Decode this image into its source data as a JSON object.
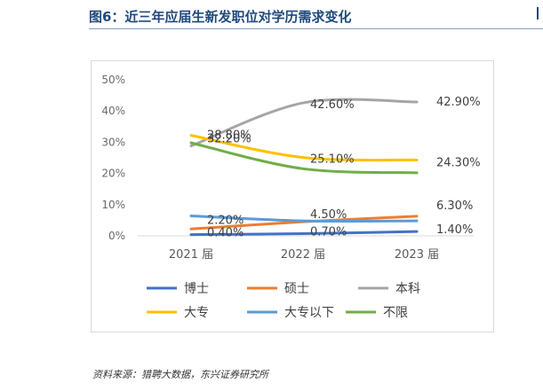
{
  "title": "图6：近三年应届生新发职位对学历需求变化",
  "source": "资料来源：猎聘大数据，东兴证券研究所",
  "chart_data": {
    "type": "line",
    "categories": [
      "2021 届",
      "2022 届",
      "2023 届"
    ],
    "y_ticks": [
      "0%",
      "10%",
      "20%",
      "30%",
      "40%",
      "50%"
    ],
    "ylim": [
      0,
      50
    ],
    "grid": false,
    "legend_position": "bottom",
    "series": [
      {
        "name": "博士",
        "color": "#4472c4",
        "values": [
          0.4,
          0.7,
          1.4
        ],
        "labels": [
          "0.40%",
          "0.70%",
          "1.40%"
        ]
      },
      {
        "name": "硕士",
        "color": "#ed7d31",
        "values": [
          2.2,
          4.5,
          6.3
        ],
        "labels": [
          "2.20%",
          "4.50%",
          "6.30%"
        ]
      },
      {
        "name": "本科",
        "color": "#a5a5a5",
        "values": [
          28.8,
          42.6,
          42.9
        ],
        "labels": [
          "28.80%",
          "42.60%",
          "42.90%"
        ]
      },
      {
        "name": "大专",
        "color": "#ffc000",
        "values": [
          32.2,
          25.1,
          24.3
        ],
        "labels": [
          "32.20%",
          "25.10%",
          "24.30%"
        ]
      },
      {
        "name": "大专以下",
        "color": "#5b9bd5",
        "values": [
          6.4,
          4.8,
          4.8
        ],
        "labels": [
          null,
          null,
          null
        ]
      },
      {
        "name": "不限",
        "color": "#70ad47",
        "values": [
          29.8,
          21.5,
          20.2
        ],
        "labels": [
          null,
          null,
          null
        ]
      }
    ]
  }
}
